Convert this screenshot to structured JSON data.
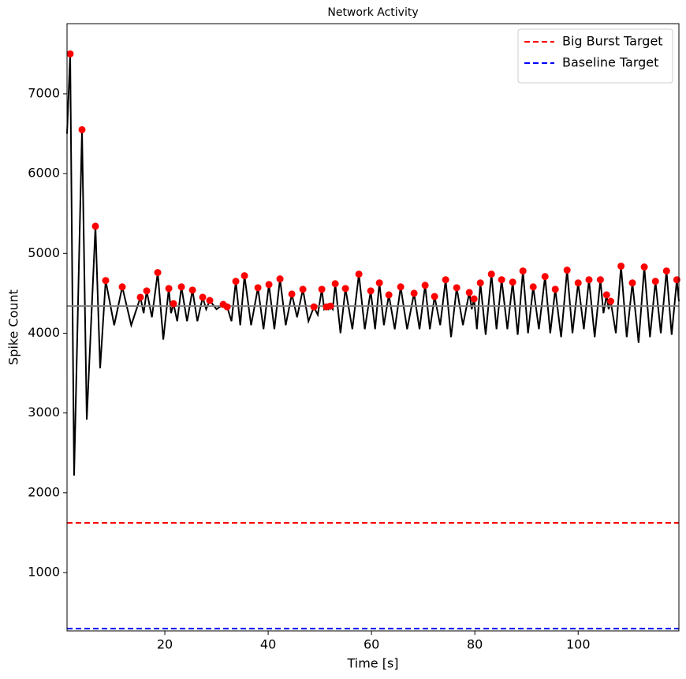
{
  "chart_data": {
    "type": "line",
    "title": "Network Activity",
    "xlabel": "Time [s]",
    "ylabel": "Spike Count",
    "xlim": [
      1.07,
      119.5
    ],
    "ylim": [
      269,
      7879
    ],
    "xticks": [
      20,
      40,
      60,
      80,
      100
    ],
    "yticks": [
      1000,
      2000,
      3000,
      4000,
      5000,
      6000,
      7000
    ],
    "legend": "upper right",
    "series": [
      {
        "color": "#000000",
        "x": [
          1.07,
          1.68,
          2.44,
          3.97,
          4.89,
          6.57,
          7.48,
          8.55,
          10.2,
          11.76,
          13.5,
          15.27,
          15.9,
          16.49,
          17.5,
          18.63,
          19.7,
          20.77,
          21.2,
          21.68,
          22.4,
          23.21,
          24.3,
          25.35,
          26.3,
          27.33,
          28.0,
          28.7,
          30.0,
          31.3,
          31.7,
          32.06,
          32.9,
          33.74,
          34.6,
          35.42,
          36.7,
          38.02,
          39.1,
          40.15,
          41.2,
          42.29,
          43.4,
          44.58,
          45.6,
          46.72,
          47.8,
          48.86,
          49.6,
          50.38,
          50.85,
          51.3,
          51.7,
          52.06,
          52.5,
          52.98,
          54.0,
          54.96,
          56.3,
          57.56,
          58.7,
          59.85,
          60.7,
          61.53,
          62.4,
          63.36,
          64.5,
          65.65,
          66.9,
          68.24,
          69.3,
          70.38,
          71.3,
          72.21,
          73.3,
          74.35,
          75.4,
          76.49,
          77.7,
          78.93,
          79.4,
          79.85,
          80.4,
          81.07,
          82.1,
          83.21,
          84.2,
          85.19,
          86.3,
          87.33,
          88.3,
          89.31,
          90.3,
          91.3,
          92.4,
          93.59,
          94.6,
          95.57,
          96.7,
          97.86,
          98.9,
          100.0,
          101.1,
          102.1,
          103.2,
          104.3,
          104.9,
          105.5,
          105.9,
          106.3,
          107.3,
          108.3,
          109.4,
          110.5,
          111.7,
          112.8,
          113.9,
          114.96,
          116.0,
          117.1,
          118.1,
          119.1,
          119.5
        ],
        "values": [
          6500,
          7500,
          2215,
          6550,
          2917,
          5340,
          3559,
          4660,
          4100,
          4580,
          4100,
          4450,
          4250,
          4530,
          4200,
          4760,
          3920,
          4560,
          4250,
          4370,
          4150,
          4580,
          4150,
          4540,
          4150,
          4450,
          4300,
          4410,
          4300,
          4360,
          4320,
          4330,
          4150,
          4650,
          4100,
          4720,
          4100,
          4570,
          4050,
          4610,
          4050,
          4680,
          4100,
          4490,
          4200,
          4550,
          4150,
          4330,
          4230,
          4550,
          4300,
          4330,
          4300,
          4340,
          4300,
          4620,
          4000,
          4560,
          4050,
          4740,
          4050,
          4530,
          4050,
          4630,
          4100,
          4480,
          4050,
          4580,
          4050,
          4500,
          4050,
          4600,
          4050,
          4460,
          4100,
          4670,
          3950,
          4570,
          4100,
          4510,
          4300,
          4430,
          4050,
          4630,
          3980,
          4740,
          4050,
          4670,
          4050,
          4640,
          3980,
          4780,
          4000,
          4580,
          4050,
          4710,
          4000,
          4550,
          3950,
          4790,
          4000,
          4630,
          4050,
          4670,
          3950,
          4670,
          4250,
          4480,
          4300,
          4400,
          4000,
          4840,
          3950,
          4630,
          3880,
          4830,
          3950,
          4650,
          4000,
          4780,
          3980,
          4670,
          4400
        ]
      }
    ],
    "peaks": {
      "color": "#ff0000",
      "x": [
        1.68,
        3.97,
        6.57,
        8.55,
        11.76,
        15.27,
        16.49,
        18.63,
        20.77,
        21.68,
        23.21,
        25.35,
        27.33,
        28.7,
        31.3,
        32.06,
        33.74,
        35.42,
        38.02,
        40.15,
        42.29,
        44.58,
        46.72,
        48.86,
        50.38,
        51.3,
        52.06,
        52.98,
        54.96,
        57.56,
        59.85,
        61.53,
        63.36,
        65.65,
        68.24,
        70.38,
        72.21,
        74.35,
        76.49,
        78.93,
        79.85,
        81.07,
        83.21,
        85.19,
        87.33,
        89.31,
        91.3,
        93.59,
        95.57,
        97.86,
        100.0,
        102.1,
        104.3,
        105.5,
        106.3,
        108.3,
        110.5,
        112.8,
        114.96,
        117.1,
        119.1
      ],
      "values": [
        7500,
        6550,
        5340,
        4660,
        4580,
        4450,
        4530,
        4760,
        4560,
        4370,
        4580,
        4540,
        4450,
        4410,
        4360,
        4330,
        4650,
        4720,
        4570,
        4610,
        4680,
        4490,
        4550,
        4330,
        4550,
        4330,
        4340,
        4620,
        4560,
        4740,
        4530,
        4630,
        4480,
        4580,
        4500,
        4600,
        4460,
        4670,
        4570,
        4510,
        4430,
        4630,
        4740,
        4670,
        4640,
        4780,
        4580,
        4710,
        4550,
        4790,
        4630,
        4670,
        4670,
        4480,
        4400,
        4840,
        4630,
        4830,
        4650,
        4780,
        4670
      ]
    },
    "hlines": [
      {
        "name": "Big Burst Target",
        "value": 1623,
        "color": "#ff0000",
        "dashed": true
      },
      {
        "name": "Baseline Target",
        "value": 298,
        "color": "#0000ff",
        "dashed": true
      },
      {
        "value": 4340,
        "color": "#808080",
        "dashed": false
      }
    ]
  }
}
